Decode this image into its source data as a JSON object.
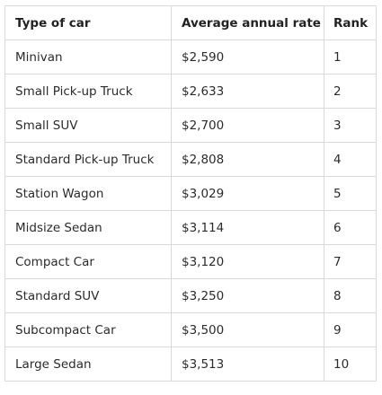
{
  "table": {
    "headers": [
      "Type of car",
      "Average annual rate",
      "Rank"
    ],
    "rows": [
      {
        "type": "Minivan",
        "rate": "$2,590",
        "rank": "1"
      },
      {
        "type": "Small Pick-up Truck",
        "rate": "$2,633",
        "rank": "2"
      },
      {
        "type": "Small SUV",
        "rate": "$2,700",
        "rank": "3"
      },
      {
        "type": "Standard Pick-up Truck",
        "rate": "$2,808",
        "rank": "4"
      },
      {
        "type": "Station Wagon",
        "rate": "$3,029",
        "rank": "5"
      },
      {
        "type": "Midsize Sedan",
        "rate": "$3,114",
        "rank": "6"
      },
      {
        "type": "Compact Car",
        "rate": "$3,120",
        "rank": "7"
      },
      {
        "type": "Standard SUV",
        "rate": "$3,250",
        "rank": "8"
      },
      {
        "type": "Subcompact Car",
        "rate": "$3,500",
        "rank": "9"
      },
      {
        "type": "Large Sedan",
        "rate": "$3,513",
        "rank": "10"
      }
    ]
  },
  "colors": {
    "border": "#d9d9d9",
    "text": "#2b2b2b",
    "background": "#ffffff"
  }
}
